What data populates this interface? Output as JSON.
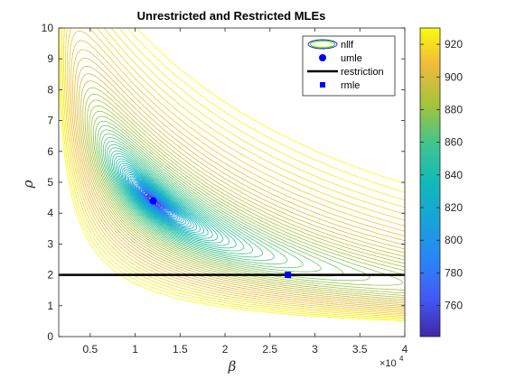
{
  "chart_data": {
    "type": "contour",
    "title": "Unrestricted  and  Restricted  MLEs",
    "xlabel": "β",
    "ylabel": "ρ",
    "x_exponent": "×10",
    "x_exponent_power": "4",
    "xlim": [
      0.15,
      4.0
    ],
    "ylim": [
      0,
      10
    ],
    "xticks": [
      "0.5",
      "1",
      "1.5",
      "2",
      "2.5",
      "3",
      "3.5",
      "4"
    ],
    "xtick_values": [
      0.5,
      1,
      1.5,
      2,
      2.5,
      3,
      3.5,
      4
    ],
    "yticks": [
      "0",
      "1",
      "2",
      "3",
      "4",
      "5",
      "6",
      "7",
      "8",
      "9",
      "10"
    ],
    "colorbar": {
      "ticks": [
        "760",
        "780",
        "800",
        "820",
        "840",
        "860",
        "880",
        "900",
        "920"
      ],
      "tick_values": [
        760,
        780,
        800,
        820,
        840,
        860,
        880,
        900,
        920
      ],
      "range": [
        741,
        930
      ],
      "colormap": "parula"
    },
    "points": {
      "umle": {
        "x": 1.2,
        "y": 4.4,
        "color": "#0000ff",
        "marker": "circle"
      },
      "rmle": {
        "x": 2.7,
        "y": 2.0,
        "color": "#0000ff",
        "marker": "square"
      }
    },
    "restriction": {
      "y": 2.0,
      "color": "#000000"
    },
    "legend": {
      "placement": "top-right",
      "entries": [
        "nllf",
        "umle",
        "restriction",
        "rmle"
      ]
    },
    "contour_levels": 70
  }
}
